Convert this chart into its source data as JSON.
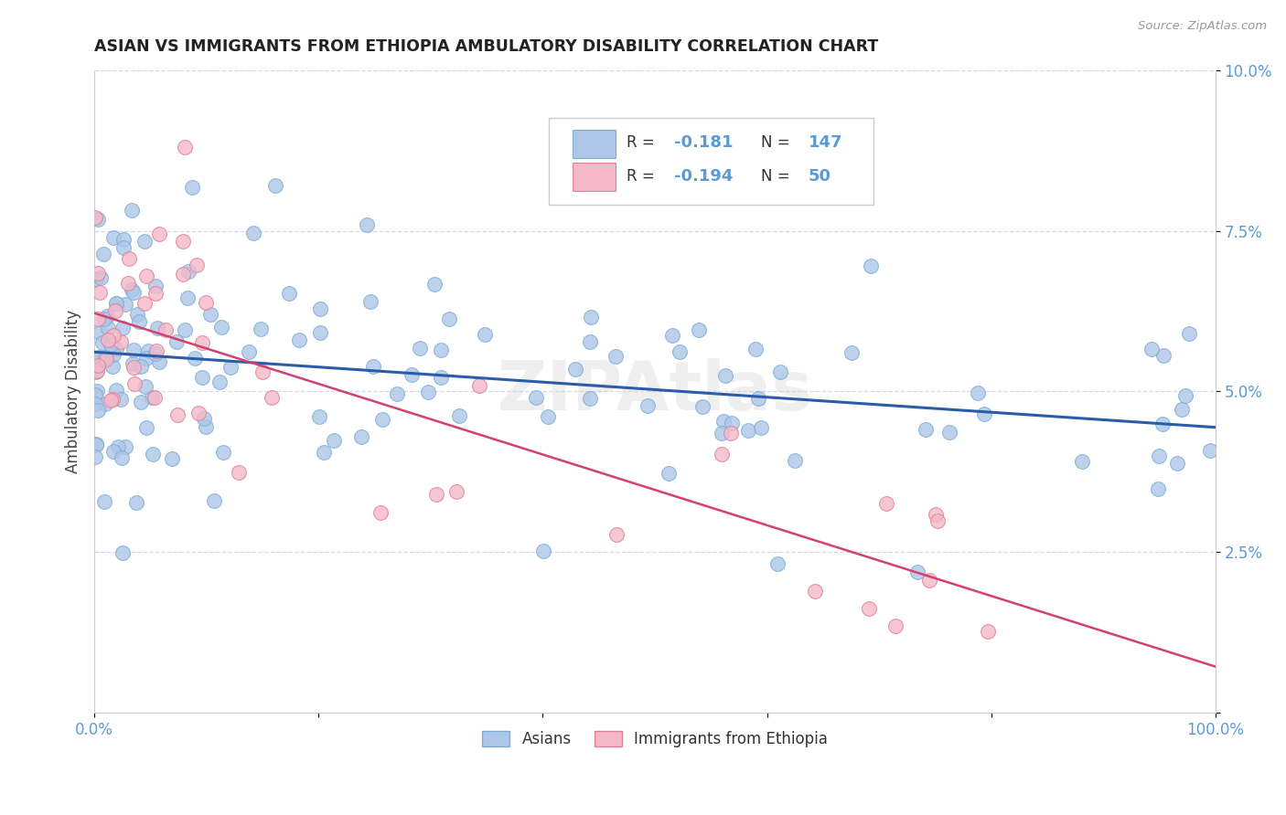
{
  "title": "ASIAN VS IMMIGRANTS FROM ETHIOPIA AMBULATORY DISABILITY CORRELATION CHART",
  "source_text": "Source: ZipAtlas.com",
  "ylabel": "Ambulatory Disability",
  "xlim": [
    0,
    1.0
  ],
  "ylim": [
    0,
    0.1
  ],
  "yticks": [
    0.0,
    0.025,
    0.05,
    0.075,
    0.1
  ],
  "ytick_labels": [
    "",
    "2.5%",
    "5.0%",
    "7.5%",
    "10.0%"
  ],
  "xticks": [
    0.0,
    0.2,
    0.4,
    0.6,
    0.8,
    1.0
  ],
  "xtick_labels": [
    "0.0%",
    "",
    "",
    "",
    "",
    "100.0%"
  ],
  "legend_labels": [
    "Asians",
    "Immigrants from Ethiopia"
  ],
  "asian_R": -0.181,
  "asian_N": 147,
  "ethiopia_R": -0.194,
  "ethiopia_N": 50,
  "asian_color": "#aec6e8",
  "asian_edge_color": "#7bafd4",
  "ethiopia_color": "#f4b8c8",
  "ethiopia_edge_color": "#e08098",
  "asian_line_color": "#2a5caa",
  "ethiopia_line_color": "#d44070",
  "title_color": "#222222",
  "axis_label_color": "#444444",
  "tick_label_color": "#5b9bd5",
  "grid_color": "#d8d8e8",
  "background_color": "#ffffff",
  "watermark": "ZIPAtlas",
  "watermark_color": "#cccccc"
}
